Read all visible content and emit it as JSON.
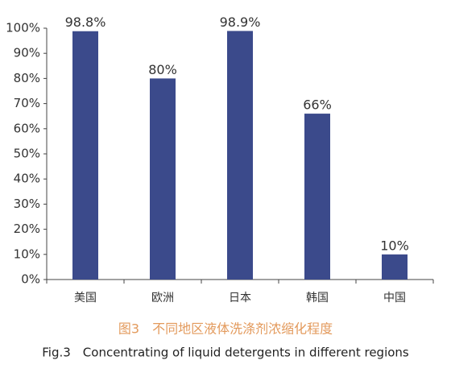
{
  "chart_data": {
    "type": "bar",
    "categories": [
      "美国",
      "欧洲",
      "日本",
      "韩国",
      "中国"
    ],
    "values": [
      98.8,
      80,
      98.9,
      66,
      10
    ],
    "value_labels": [
      "98.8%",
      "80%",
      "98.9%",
      "66%",
      "10%"
    ],
    "color": "#3b4a8b",
    "ylim": [
      0,
      100
    ],
    "yticks": [
      {
        "value": 0,
        "label": "0%"
      },
      {
        "value": 10,
        "label": "10%"
      },
      {
        "value": 20,
        "label": "20%"
      },
      {
        "value": 30,
        "label": "30%"
      },
      {
        "value": 40,
        "label": "40%"
      },
      {
        "value": 50,
        "label": "50%"
      },
      {
        "value": 60,
        "label": "60%"
      },
      {
        "value": 70,
        "label": "70%"
      },
      {
        "value": 80,
        "label": "80%"
      },
      {
        "value": 90,
        "label": "90%"
      },
      {
        "value": 100,
        "label": "100%"
      }
    ],
    "grid": false,
    "caption_cn": "图3　不同地区液体洗涤剂浓缩化程度",
    "caption_en": "Fig.3　Concentrating of liquid detergents in different regions"
  }
}
